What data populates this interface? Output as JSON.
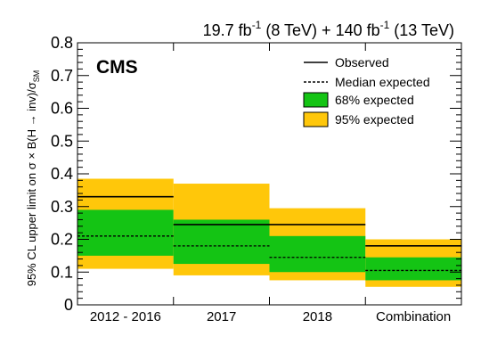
{
  "lumi_label": {
    "parts": [
      "19.7 fb",
      "-1",
      " (8 TeV) + 140 fb",
      "-1",
      " (13 TeV)"
    ]
  },
  "experiment_label": "CMS",
  "chart_data": {
    "type": "bar",
    "categories": [
      "2012 - 2016",
      "2017",
      "2018",
      "Combination"
    ],
    "observed": [
      0.33,
      0.245,
      0.245,
      0.18
    ],
    "median_expected": [
      0.21,
      0.18,
      0.145,
      0.105
    ],
    "band_68": [
      [
        0.15,
        0.29
      ],
      [
        0.125,
        0.26
      ],
      [
        0.1,
        0.21
      ],
      [
        0.075,
        0.145
      ]
    ],
    "band_95": [
      [
        0.11,
        0.385
      ],
      [
        0.09,
        0.37
      ],
      [
        0.075,
        0.295
      ],
      [
        0.055,
        0.2
      ]
    ],
    "ylabel_parts": [
      "95% CL upper limit on  σ × B(H → inv)/σ",
      "SM"
    ],
    "ylim": [
      0,
      0.8
    ],
    "yticks": [
      "0",
      "0.1",
      "0.2",
      "0.3",
      "0.4",
      "0.5",
      "0.6",
      "0.7",
      "0.8"
    ],
    "legend": {
      "observed": "Observed",
      "median": "Median expected",
      "band_68": "68% expected",
      "band_95": "95% expected"
    },
    "colors": {
      "band_68": "#14c414",
      "band_95": "#ffc70a",
      "line": "#000000"
    }
  }
}
